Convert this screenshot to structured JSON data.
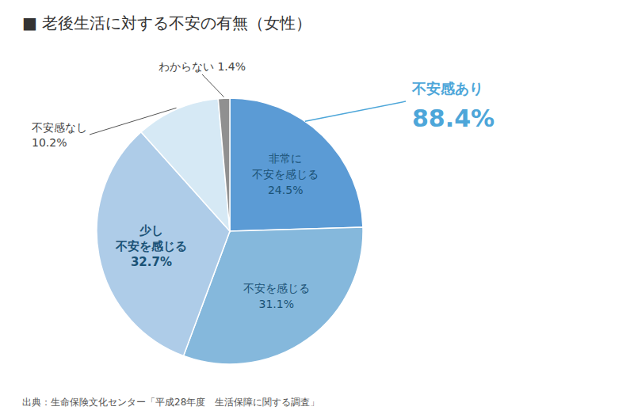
{
  "chart_data": {
    "type": "pie",
    "title": "■ 老後生活に対する不安の有無（女性）",
    "categories": [
      "非常に\n不安を感じる\n24.5%",
      "不安を感じる\n31.1%",
      "少し\n不安を感じる\n32.7%",
      "不安感なし\n10.2%",
      "わからない 1.4%"
    ],
    "values": [
      24.5,
      31.1,
      32.7,
      10.2,
      1.4
    ],
    "colors": [
      "#5b9bd5",
      "#85b8dc",
      "#aecce8",
      "#d6e9f5",
      "#909090"
    ],
    "annotations": [
      {
        "text": "不安感あり",
        "color": "#4da6d9"
      },
      {
        "text": "88.4%",
        "color": "#4da6d9"
      },
      {
        "text": "出典：生命保険文化センター「平成28年度　生活保障に関する調査」"
      }
    ]
  }
}
